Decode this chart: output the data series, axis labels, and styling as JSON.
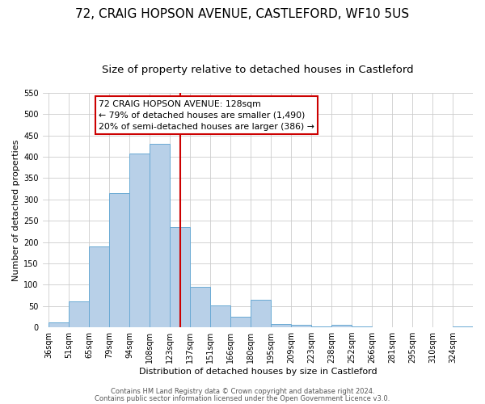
{
  "title": "72, CRAIG HOPSON AVENUE, CASTLEFORD, WF10 5US",
  "subtitle": "Size of property relative to detached houses in Castleford",
  "xlabel": "Distribution of detached houses by size in Castleford",
  "ylabel": "Number of detached properties",
  "footer1": "Contains HM Land Registry data © Crown copyright and database right 2024.",
  "footer2": "Contains public sector information licensed under the Open Government Licence v3.0.",
  "bar_labels": [
    "36sqm",
    "51sqm",
    "65sqm",
    "79sqm",
    "94sqm",
    "108sqm",
    "123sqm",
    "137sqm",
    "151sqm",
    "166sqm",
    "180sqm",
    "195sqm",
    "209sqm",
    "223sqm",
    "238sqm",
    "252sqm",
    "266sqm",
    "281sqm",
    "295sqm",
    "310sqm",
    "324sqm"
  ],
  "bar_heights": [
    12,
    60,
    190,
    315,
    408,
    430,
    235,
    95,
    52,
    25,
    65,
    8,
    5,
    2,
    5,
    2,
    0,
    0,
    0,
    0,
    2
  ],
  "bar_color": "#b8d0e8",
  "bar_edge_color": "#6aaad4",
  "grid_color": "#cccccc",
  "vline_x_idx": 6,
  "vline_color": "#cc0000",
  "annotation_text": "72 CRAIG HOPSON AVENUE: 128sqm\n← 79% of detached houses are smaller (1,490)\n20% of semi-detached houses are larger (386) →",
  "annotation_box_color": "#cc0000",
  "ylim": [
    0,
    550
  ],
  "yticks": [
    0,
    50,
    100,
    150,
    200,
    250,
    300,
    350,
    400,
    450,
    500,
    550
  ],
  "bg_color": "#ffffff",
  "title_fontsize": 11,
  "subtitle_fontsize": 9.5,
  "axis_label_fontsize": 8,
  "tick_fontsize": 7,
  "footer_fontsize": 6
}
